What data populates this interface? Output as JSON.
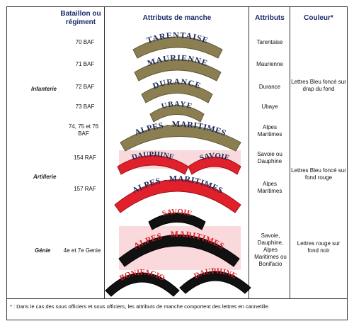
{
  "headers": {
    "battalion": "Bataillon ou régiment",
    "sleeve": "Attributs de manche",
    "attributes": "Attributs",
    "colour": "Couleur*"
  },
  "groups": {
    "infantry": "Infanterie",
    "artillery": "Artillerie",
    "engineers": "Génie"
  },
  "units": {
    "baf70": "70 BAF",
    "baf71": "71 BAF",
    "baf72": "72 BAF",
    "baf73": "73 BAF",
    "baf747576": "74, 75 et 76 BAF",
    "raf154": "154 RAF",
    "raf157": "157 RAF",
    "genie": "4e et 7e Genie"
  },
  "patches": {
    "tarentaise": "TARENTAISE",
    "maurienne": "MAURIENNE",
    "durance": "DURANCE",
    "ubaye": "UBAYE",
    "alpes_maritimes_khaki": "ALPES - MARITIMES",
    "dauphine_red": "DAUPHINE",
    "savoie_red": "SAVOIE",
    "alpes_maritimes_red": "ALPES - MARITIMES",
    "savoie_black": "SAVOIE",
    "alpes_maritimes_black": "ALPES - MARITIMES",
    "bonifacio": "BONIFACIO",
    "dauphine_black": "DAUPHINE"
  },
  "attributes": {
    "tarentaise": "Tarentaise",
    "maurienne": "Maurienne",
    "durance": "Durance",
    "ubaye": "Ubaye",
    "alpes_maritimes_inf": "Alpes Maritimes",
    "savoie_dauphine": "Savoie ou Dauphine",
    "alpes_maritimes_art": "Alpes Maritimes",
    "genie": "Savoie, Dauphine, Alpes Maritimes ou Bonifacio"
  },
  "colours": {
    "infantry": "Lettres Bleu foncé sur drap du fond",
    "artillery": "Lettres Bleu foncé sur fond rouge",
    "engineers": "Lettres rouge sur fond noir"
  },
  "footnote": "* : Dans le cas des sous officiers et sous officiers, les attributs de manche comportent des lettres en cannetille.",
  "colors": {
    "header_text": "#1a2b6b",
    "khaki": "#8b7f52",
    "navy_text": "#1e2a5a",
    "red": "#e0202a",
    "black": "#111111",
    "pink_bg": "#f8d6d8"
  }
}
